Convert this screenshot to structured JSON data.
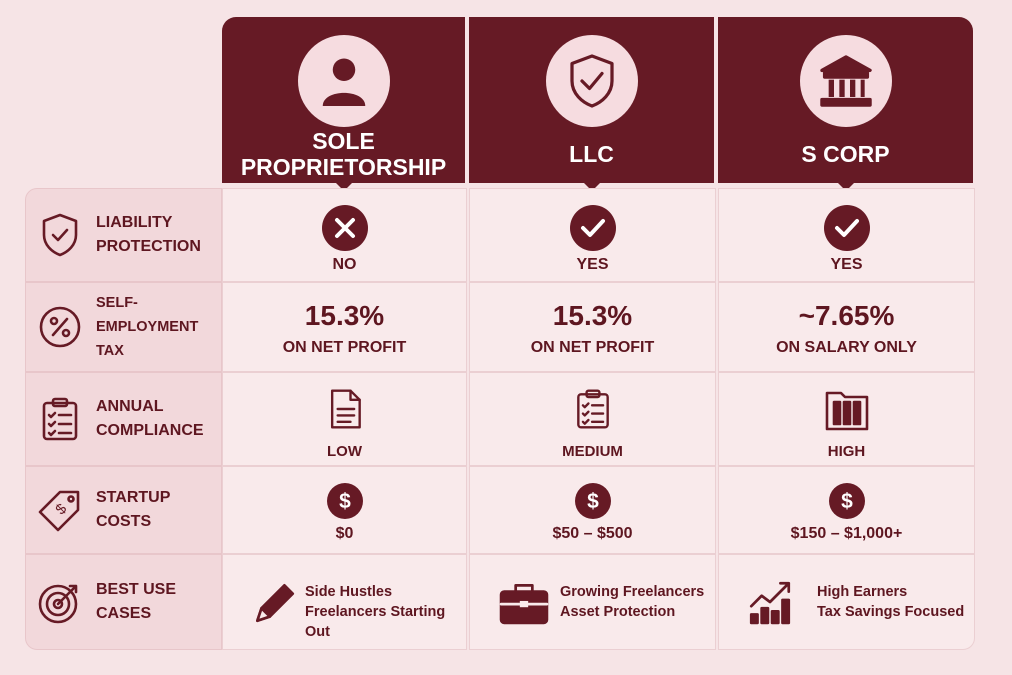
{
  "columns": [
    {
      "title": "SOLE PROPRIETORSHIP"
    },
    {
      "title": "LLC"
    },
    {
      "title": "S CORP"
    }
  ],
  "rows": [
    {
      "label": "LIABILITY PROTECTION",
      "cells": [
        {
          "text": "NO"
        },
        {
          "text": "YES"
        },
        {
          "text": "YES"
        }
      ]
    },
    {
      "label": "SELF-EMPLOYMENT TAX",
      "cells": [
        {
          "value": "15.3%",
          "text": "ON NET PROFIT"
        },
        {
          "value": "15.3%",
          "text": "ON NET PROFIT"
        },
        {
          "value": "~7.65%",
          "text": "ON SALARY ONLY"
        }
      ]
    },
    {
      "label": "ANNUAL COMPLIANCE",
      "cells": [
        {
          "text": "LOW"
        },
        {
          "text": "MEDIUM"
        },
        {
          "text": "HIGH"
        }
      ]
    },
    {
      "label": "STARTUP COSTS",
      "cells": [
        {
          "text": "$0"
        },
        {
          "text": "$50 – $500"
        },
        {
          "text": "$150 – $1,000+"
        }
      ]
    },
    {
      "label": "BEST USE CASES",
      "cells": [
        {
          "lines": [
            "Side Hustles",
            "Freelancers Starting Out"
          ]
        },
        {
          "lines": [
            "Growing Freelancers",
            "Asset Protection"
          ]
        },
        {
          "lines": [
            "High Earners",
            "Tax Savings Focused"
          ]
        }
      ]
    }
  ]
}
